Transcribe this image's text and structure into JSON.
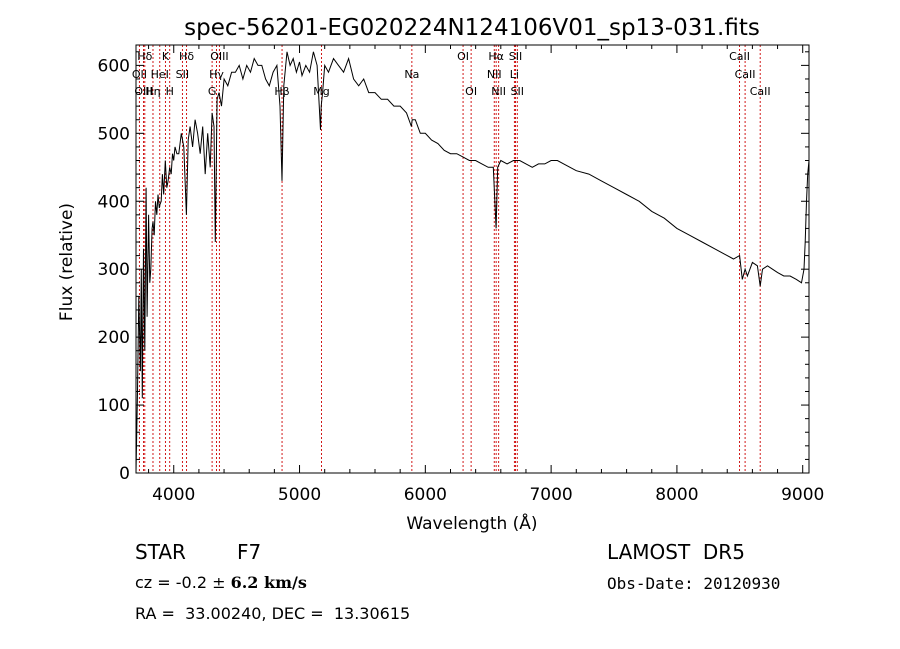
{
  "chart_data": {
    "type": "line",
    "title": "spec-56201-EG020224N124106V01_sp13-031.fits",
    "xlabel": "Wavelength (Å)",
    "ylabel": "Flux (relative)",
    "xlim": [
      3700,
      9050
    ],
    "ylim": [
      0,
      630
    ],
    "x_ticks": [
      4000,
      5000,
      6000,
      7000,
      8000,
      9000
    ],
    "y_ticks": [
      0,
      100,
      200,
      300,
      400,
      500,
      600
    ],
    "grid": false,
    "series": [
      {
        "color": "#000000",
        "x": [
          3700,
          3712,
          3722,
          3735,
          3742,
          3750,
          3760,
          3770,
          3780,
          3788,
          3800,
          3810,
          3818,
          3828,
          3835,
          3845,
          3855,
          3865,
          3875,
          3885,
          3890,
          3900,
          3910,
          3920,
          3933,
          3945,
          3955,
          3968,
          3980,
          3990,
          4000,
          4010,
          4025,
          4040,
          4060,
          4080,
          4101,
          4115,
          4130,
          4150,
          4170,
          4190,
          4210,
          4230,
          4250,
          4270,
          4290,
          4305,
          4320,
          4330,
          4345,
          4360,
          4380,
          4400,
          4430,
          4460,
          4490,
          4520,
          4550,
          4580,
          4610,
          4640,
          4670,
          4700,
          4730,
          4760,
          4790,
          4820,
          4845,
          4861,
          4875,
          4900,
          4925,
          4950,
          4975,
          5000,
          5020,
          5050,
          5080,
          5110,
          5140,
          5167,
          5172,
          5183,
          5200,
          5230,
          5270,
          5310,
          5350,
          5390,
          5430,
          5470,
          5510,
          5550,
          5600,
          5650,
          5700,
          5750,
          5800,
          5850,
          5889,
          5896,
          5920,
          5960,
          6000,
          6050,
          6100,
          6150,
          6200,
          6250,
          6300,
          6350,
          6400,
          6450,
          6500,
          6540,
          6563,
          6575,
          6600,
          6650,
          6700,
          6750,
          6800,
          6850,
          6900,
          6950,
          7000,
          7050,
          7100,
          7150,
          7200,
          7300,
          7400,
          7500,
          7600,
          7700,
          7800,
          7900,
          8000,
          8100,
          8200,
          8300,
          8400,
          8450,
          8498,
          8520,
          8542,
          8560,
          8600,
          8640,
          8662,
          8680,
          8720,
          8760,
          8800,
          8850,
          8900,
          8950,
          8990,
          9010,
          9020,
          9030,
          9040,
          9050
        ],
        "y": [
          0,
          120,
          260,
          150,
          300,
          110,
          330,
          180,
          420,
          230,
          380,
          280,
          300,
          360,
          370,
          350,
          400,
          380,
          410,
          390,
          395,
          400,
          440,
          410,
          460,
          420,
          430,
          450,
          440,
          470,
          460,
          480,
          470,
          470,
          500,
          480,
          380,
          490,
          510,
          480,
          520,
          500,
          470,
          510,
          440,
          500,
          450,
          530,
          510,
          340,
          550,
          560,
          540,
          580,
          570,
          590,
          590,
          600,
          580,
          600,
          590,
          610,
          600,
          600,
          580,
          570,
          590,
          600,
          540,
          430,
          570,
          620,
          600,
          610,
          590,
          605,
          585,
          600,
          590,
          620,
          600,
          505,
          540,
          560,
          600,
          590,
          610,
          600,
          590,
          610,
          580,
          570,
          580,
          560,
          560,
          550,
          550,
          540,
          540,
          530,
          510,
          520,
          520,
          500,
          500,
          490,
          485,
          475,
          470,
          470,
          465,
          460,
          460,
          455,
          450,
          450,
          360,
          450,
          460,
          455,
          460,
          460,
          455,
          450,
          455,
          455,
          460,
          460,
          455,
          450,
          445,
          440,
          430,
          420,
          410,
          400,
          385,
          375,
          360,
          350,
          340,
          330,
          320,
          315,
          320,
          285,
          300,
          290,
          310,
          305,
          275,
          300,
          305,
          300,
          295,
          290,
          290,
          285,
          280,
          300,
          340,
          400,
          440,
          460
        ]
      }
    ],
    "line_markers": [
      {
        "label": "Hδ",
        "x": 3770,
        "row": 0
      },
      {
        "label": "K",
        "x": 3934,
        "row": 0
      },
      {
        "label": "Hδ",
        "x": 4102,
        "row": 0
      },
      {
        "label": "OIII",
        "x": 4363,
        "row": 0
      },
      {
        "label": "OI",
        "x": 6300,
        "row": 0
      },
      {
        "label": "Hα",
        "x": 6563,
        "row": 0
      },
      {
        "label": "SII",
        "x": 6717,
        "row": 0
      },
      {
        "label": "CaII",
        "x": 8498,
        "row": 0
      },
      {
        "label": "OII",
        "x": 3727,
        "row": 1
      },
      {
        "label": "HeI",
        "x": 3889,
        "row": 1
      },
      {
        "label": "SII",
        "x": 4069,
        "row": 1
      },
      {
        "label": "Hγ",
        "x": 4340,
        "row": 1
      },
      {
        "label": "Na",
        "x": 5893,
        "row": 1
      },
      {
        "label": "NII",
        "x": 6548,
        "row": 1
      },
      {
        "label": "Li",
        "x": 6708,
        "row": 1
      },
      {
        "label": "CaII",
        "x": 8542,
        "row": 1
      },
      {
        "label": "OIII",
        "x": 3760,
        "row": 2
      },
      {
        "label": "Hη",
        "x": 3835,
        "row": 2
      },
      {
        "label": "H",
        "x": 3968,
        "row": 2
      },
      {
        "label": "G",
        "x": 4305,
        "row": 2
      },
      {
        "label": "OI",
        "x": 6364,
        "row": 2
      },
      {
        "label": "NII",
        "x": 6583,
        "row": 2
      },
      {
        "label": "SII",
        "x": 6731,
        "row": 2
      },
      {
        "label": "CaII",
        "x": 8662,
        "row": 2
      },
      {
        "label": "Hβ",
        "x": 4861,
        "row": 3
      },
      {
        "label": "Mg",
        "x": 5175,
        "row": 3
      }
    ]
  },
  "info": {
    "obj_class": "STAR",
    "subclass": "F7",
    "survey": "LAMOST  DR5",
    "cz_label": "cz = ",
    "cz_value": "-0.2",
    "pm": " ± ",
    "cz_err": "6.2",
    "cz_unit": " km/s",
    "obs_date": "Obs-Date: 20120930",
    "radec": "RA =  33.00240, DEC =  13.30615"
  }
}
